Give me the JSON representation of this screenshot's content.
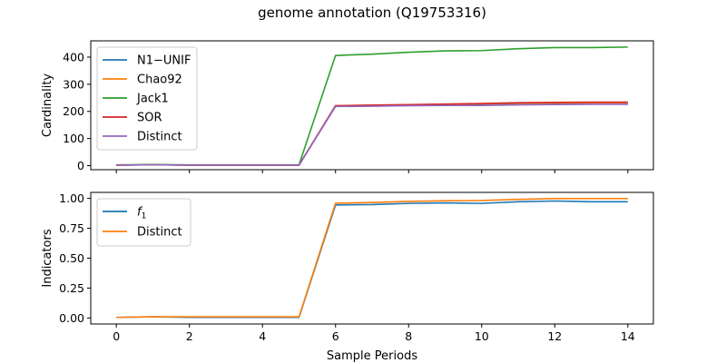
{
  "figure_title": "genome annotation (Q19753316)",
  "chart_data": [
    {
      "type": "line",
      "title": "",
      "xlabel": "",
      "ylabel": "Cardinality",
      "xlim": [
        -0.7,
        14.7
      ],
      "ylim": [
        -15,
        460
      ],
      "xticks": [
        0,
        2,
        4,
        6,
        8,
        10,
        12,
        14
      ],
      "yticks": [
        0,
        100,
        200,
        300,
        400
      ],
      "ytick_labels": [
        "0",
        "100",
        "200",
        "300",
        "400"
      ],
      "show_xtick_labels": false,
      "grid": false,
      "legend_position": "upper-left",
      "x": [
        0,
        1,
        2,
        3,
        4,
        5,
        6,
        7,
        8,
        9,
        10,
        11,
        12,
        13,
        14
      ],
      "series": [
        {
          "name": "N1−UNIF",
          "color": "#1f77b4",
          "values": [
            2,
            3,
            2,
            2,
            2,
            2,
            220,
            221,
            223,
            225,
            227,
            229,
            230,
            231,
            231
          ]
        },
        {
          "name": "Chao92",
          "color": "#ff7f0e",
          "values": [
            2,
            3,
            2,
            2,
            2,
            2,
            221,
            222,
            224,
            226,
            228,
            230,
            231,
            232,
            232
          ]
        },
        {
          "name": "Jack1",
          "color": "#2ca02c",
          "values": [
            3,
            4,
            3,
            3,
            3,
            3,
            406,
            411,
            418,
            423,
            424,
            431,
            435,
            435,
            437
          ]
        },
        {
          "name": "SOR",
          "color": "#d62728",
          "values": [
            2,
            3,
            2,
            2,
            2,
            2,
            221,
            223,
            225,
            227,
            229,
            232,
            233,
            234,
            234
          ]
        },
        {
          "name": "Distinct",
          "color": "#9467bd",
          "values": [
            2,
            3,
            2,
            2,
            2,
            2,
            218,
            219,
            221,
            222,
            222,
            224,
            225,
            226,
            226
          ]
        }
      ]
    },
    {
      "type": "line",
      "title": "",
      "xlabel": "Sample Periods",
      "ylabel": "Indicators",
      "xlim": [
        -0.7,
        14.7
      ],
      "ylim": [
        -0.05,
        1.05
      ],
      "xticks": [
        0,
        2,
        4,
        6,
        8,
        10,
        12,
        14
      ],
      "xtick_labels": [
        "0",
        "2",
        "4",
        "6",
        "8",
        "10",
        "12",
        "14"
      ],
      "yticks": [
        0,
        0.25,
        0.5,
        0.75,
        1.0
      ],
      "ytick_labels": [
        "0.00",
        "0.25",
        "0.50",
        "0.75",
        "1.00"
      ],
      "show_xtick_labels": true,
      "grid": false,
      "legend_position": "upper-left",
      "x": [
        0,
        1,
        2,
        3,
        4,
        5,
        6,
        7,
        8,
        9,
        10,
        11,
        12,
        13,
        14
      ],
      "series": [
        {
          "name": "f",
          "name_sub": "1",
          "color": "#1f77b4",
          "values": [
            0.005,
            0.01,
            0.005,
            0.005,
            0.005,
            0.005,
            0.945,
            0.948,
            0.958,
            0.962,
            0.958,
            0.972,
            0.978,
            0.972,
            0.972
          ]
        },
        {
          "name": "Distinct",
          "color": "#ff7f0e",
          "values": [
            0.005,
            0.01,
            0.01,
            0.01,
            0.01,
            0.01,
            0.96,
            0.965,
            0.975,
            0.98,
            0.982,
            0.992,
            0.998,
            0.998,
            0.998
          ]
        }
      ]
    }
  ]
}
